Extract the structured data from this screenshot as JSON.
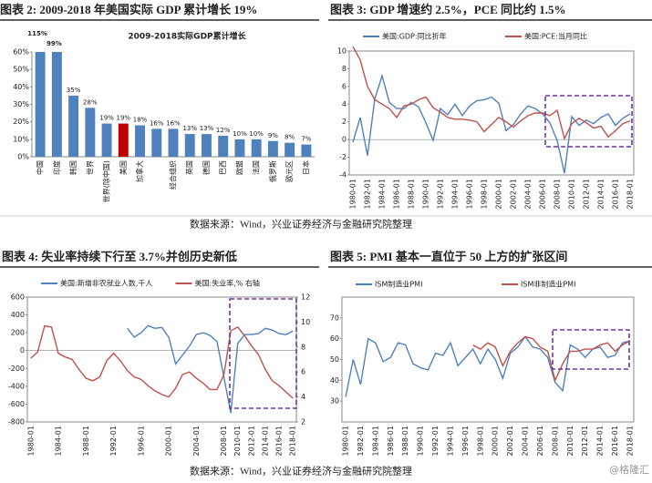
{
  "chart_data": [
    {
      "type": "bar",
      "title": "图表 2:  2009-2018 年美国实际 GDP 累计增长 19%",
      "subtitle": "2009-2018实际GDP累计增长",
      "categories": [
        "中国",
        "印度",
        "韩国",
        "世界",
        "世界(除中国)",
        "美国",
        "加拿大",
        null,
        "经合组织",
        "英国",
        "德国",
        "巴西",
        "欧盟",
        "法国",
        "俄罗斯",
        "欧元区",
        "日本"
      ],
      "values": [
        115,
        99,
        35,
        28,
        19,
        19,
        18,
        16,
        16,
        13,
        13,
        12,
        10,
        10,
        9,
        8,
        7
      ],
      "value_labels": [
        "115%",
        "99%",
        "35%",
        "28%",
        "19%",
        "19%",
        "18%",
        "16%",
        "16%",
        "13%",
        "13%",
        "12%",
        "10%",
        "10%",
        "9%",
        "8%",
        "7%"
      ],
      "colors": [
        "#4f81bd",
        "#4f81bd",
        "#4f81bd",
        "#4f81bd",
        "#4f81bd",
        "#c00000",
        "#4f81bd",
        "#4f81bd",
        "#4f81bd",
        "#4f81bd",
        "#4f81bd",
        "#4f81bd",
        "#4f81bd",
        "#4f81bd",
        "#4f81bd",
        "#4f81bd",
        "#4f81bd"
      ],
      "ylim": [
        0,
        60
      ],
      "yticks": [
        {
          "value": 0,
          "label": "0%"
        },
        {
          "value": 10,
          "label": "10%"
        },
        {
          "value": 20,
          "label": "20%"
        },
        {
          "value": 30,
          "label": "30%"
        },
        {
          "value": 40,
          "label": "40%"
        },
        {
          "value": 50,
          "label": "50%"
        },
        {
          "value": 60,
          "label": "60%"
        }
      ]
    },
    {
      "type": "line",
      "title": "图表 3:  GDP 增速约 2.5%，PCE 同比约 1.5%",
      "legend": "top",
      "x": [
        "1980-01",
        "1981-01",
        "1982-01",
        "1983-01",
        "1984-01",
        "1985-01",
        "1986-01",
        "1987-01",
        "1988-01",
        "1989-01",
        "1990-01",
        "1991-01",
        "1992-01",
        "1993-01",
        "1994-01",
        "1995-01",
        "1996-01",
        "1997-01",
        "1998-01",
        "1999-01",
        "2000-01",
        "2001-01",
        "2002-01",
        "2003-01",
        "2004-01",
        "2005-01",
        "2006-01",
        "2007-01",
        "2008-01",
        "2009-01",
        "2010-01",
        "2011-01",
        "2012-01",
        "2013-01",
        "2014-01",
        "2015-01",
        "2016-01",
        "2017-01",
        "2018-01"
      ],
      "xticks": [
        "1980-01",
        "1982-01",
        "1984-01",
        "1986-01",
        "1988-01",
        "1990-01",
        "1992-01",
        "1994-01",
        "1996-01",
        "1998-01",
        "2000-01",
        "2002-01",
        "2004-01",
        "2006-01",
        "2008-01",
        "2010-01",
        "2012-01",
        "2014-01",
        "2016-01",
        "2018-01"
      ],
      "series": [
        {
          "name": "美国:GDP:同比折年",
          "color": "#4f81bd",
          "values": [
            -0.3,
            2.5,
            -1.8,
            4.6,
            7.2,
            4.2,
            3.5,
            3.5,
            4.2,
            3.7,
            1.9,
            -0.1,
            3.5,
            2.8,
            4.0,
            2.7,
            3.8,
            4.4,
            4.5,
            4.8,
            4.1,
            1.0,
            1.7,
            2.9,
            3.8,
            3.5,
            2.9,
            1.9,
            -0.1,
            -3.8,
            2.6,
            1.6,
            2.2,
            1.8,
            2.5,
            2.9,
            1.6,
            2.4,
            2.9
          ]
        },
        {
          "name": "美国:PCE:当月同比",
          "color": "#c0504d",
          "values": [
            10.5,
            9,
            6,
            4.5,
            4,
            3.5,
            2.5,
            3.8,
            4,
            4.5,
            4.8,
            3.6,
            3.1,
            2.5,
            2.3,
            2.3,
            2.2,
            2,
            0.9,
            1.7,
            2.5,
            2.0,
            1.4,
            2.1,
            2.7,
            3.0,
            3.0,
            2.7,
            3.3,
            0.1,
            1.8,
            2.4,
            1.9,
            1.3,
            1.5,
            0.3,
            1.0,
            1.8,
            2.1
          ]
        }
      ],
      "ylim": [
        -4,
        10
      ],
      "yticks": [
        -4,
        -2,
        0,
        2,
        4,
        6,
        8,
        10
      ]
    },
    {
      "type": "line",
      "title": "图表 4:  失业率持续下行至 3.7%并创历史新低",
      "legend": "top",
      "x": [
        "1980-01",
        "1981-01",
        "1982-01",
        "1983-01",
        "1984-01",
        "1985-01",
        "1986-01",
        "1987-01",
        "1988-01",
        "1989-01",
        "1990-01",
        "1991-01",
        "1992-01",
        "1993-01",
        "1994-01",
        "1995-01",
        "1996-01",
        "1997-01",
        "1998-01",
        "1999-01",
        "2000-01",
        "2001-01",
        "2002-01",
        "2003-01",
        "2004-01",
        "2005-01",
        "2006-01",
        "2007-01",
        "2008-01",
        "2009-01",
        "2010-01",
        "2011-01",
        "2012-01",
        "2013-01",
        "2014-01",
        "2015-01",
        "2016-01",
        "2017-01",
        "2018-01"
      ],
      "xticks": [
        "1980-01",
        "1984-01",
        "1988-01",
        "1992-01",
        "1996-01",
        "2000-01",
        "2004-01",
        "2008-01",
        "2010-01",
        "2012-01",
        "2014-01",
        "2016-01",
        "2018-01"
      ],
      "series": [
        {
          "name": "美国:新增非农就业人数,千人",
          "color": "#4f81bd",
          "values": [
            null,
            null,
            null,
            null,
            null,
            null,
            null,
            null,
            null,
            null,
            null,
            null,
            null,
            null,
            250,
            150,
            200,
            280,
            250,
            260,
            150,
            -150,
            -50,
            50,
            180,
            200,
            170,
            100,
            -300,
            -700,
            80,
            180,
            180,
            190,
            250,
            230,
            190,
            180,
            220
          ]
        },
        {
          "name": "美国:失业率,% 右轴",
          "color": "#c0504d",
          "axis": "y2",
          "values": [
            7.1,
            7.6,
            9.7,
            9.6,
            7.5,
            7.2,
            7.0,
            6.2,
            5.5,
            5.3,
            5.6,
            6.9,
            7.5,
            6.9,
            6.1,
            5.6,
            5.4,
            4.9,
            4.5,
            4.2,
            4.0,
            4.7,
            5.8,
            6.0,
            5.5,
            5.1,
            4.6,
            4.6,
            5.8,
            9.3,
            9.6,
            8.9,
            8.1,
            7.4,
            6.2,
            5.3,
            4.9,
            4.4,
            3.9
          ]
        }
      ],
      "ylim": [
        -800,
        600
      ],
      "yticks": [
        -800,
        -600,
        -400,
        -200,
        0,
        200,
        400,
        600
      ],
      "y2lim": [
        2,
        12
      ],
      "y2ticks": [
        2,
        4,
        6,
        8,
        10,
        12
      ]
    },
    {
      "type": "line",
      "title": "图表 5:  PMI 基本一直位于 50 上方的扩张区间",
      "legend": "top",
      "x": [
        "1980-01",
        "1981-01",
        "1982-01",
        "1983-01",
        "1984-01",
        "1985-01",
        "1986-01",
        "1987-01",
        "1988-01",
        "1989-01",
        "1990-01",
        "1991-01",
        "1992-01",
        "1993-01",
        "1994-01",
        "1995-01",
        "1996-01",
        "1997-01",
        "1998-01",
        "1999-01",
        "2000-01",
        "2001-01",
        "2002-01",
        "2003-01",
        "2004-01",
        "2005-01",
        "2006-01",
        "2007-01",
        "2008-01",
        "2009-01",
        "2010-01",
        "2011-01",
        "2012-01",
        "2013-01",
        "2014-01",
        "2015-01",
        "2016-01",
        "2017-01",
        "2018-01"
      ],
      "xticks": [
        "1980-01",
        "1982-01",
        "1984-01",
        "1986-01",
        "1988-01",
        "1990-01",
        "1992-01",
        "1994-01",
        "1996-01",
        "1998-01",
        "2000-01",
        "2002-01",
        "2004-01",
        "2006-01",
        "2008-01",
        "2010-01",
        "2012-01",
        "2014-01",
        "2016-01",
        "2018-01"
      ],
      "series": [
        {
          "name": "ISM制造业PMI",
          "color": "#4f81bd",
          "values": [
            32,
            50,
            38,
            60,
            58,
            49,
            51,
            58,
            57,
            48,
            46,
            45,
            53,
            52,
            58,
            47,
            51,
            55,
            48,
            55,
            50,
            41,
            53,
            56,
            61,
            56,
            55,
            51,
            39,
            35,
            57,
            55,
            51,
            55,
            56,
            51,
            52,
            58,
            59
          ]
        },
        {
          "name": "ISM非制造业PMI",
          "color": "#c0504d",
          "values": [
            null,
            null,
            null,
            null,
            null,
            null,
            null,
            null,
            null,
            null,
            null,
            null,
            null,
            null,
            null,
            null,
            null,
            57,
            55,
            58,
            56,
            47,
            54,
            58,
            61,
            60,
            56,
            54,
            40,
            48,
            54,
            54,
            55,
            55,
            57,
            58,
            54,
            57,
            59
          ]
        }
      ],
      "ylim": [
        20,
        80
      ],
      "yticks": [
        30,
        40,
        50,
        60,
        70
      ]
    }
  ],
  "sources": [
    "数据来源：Wind，兴业证券经济与金融研究院整理",
    "数据来源：Wind，兴业证券经济与金融研究院整理"
  ],
  "watermark": "@格隆汇"
}
